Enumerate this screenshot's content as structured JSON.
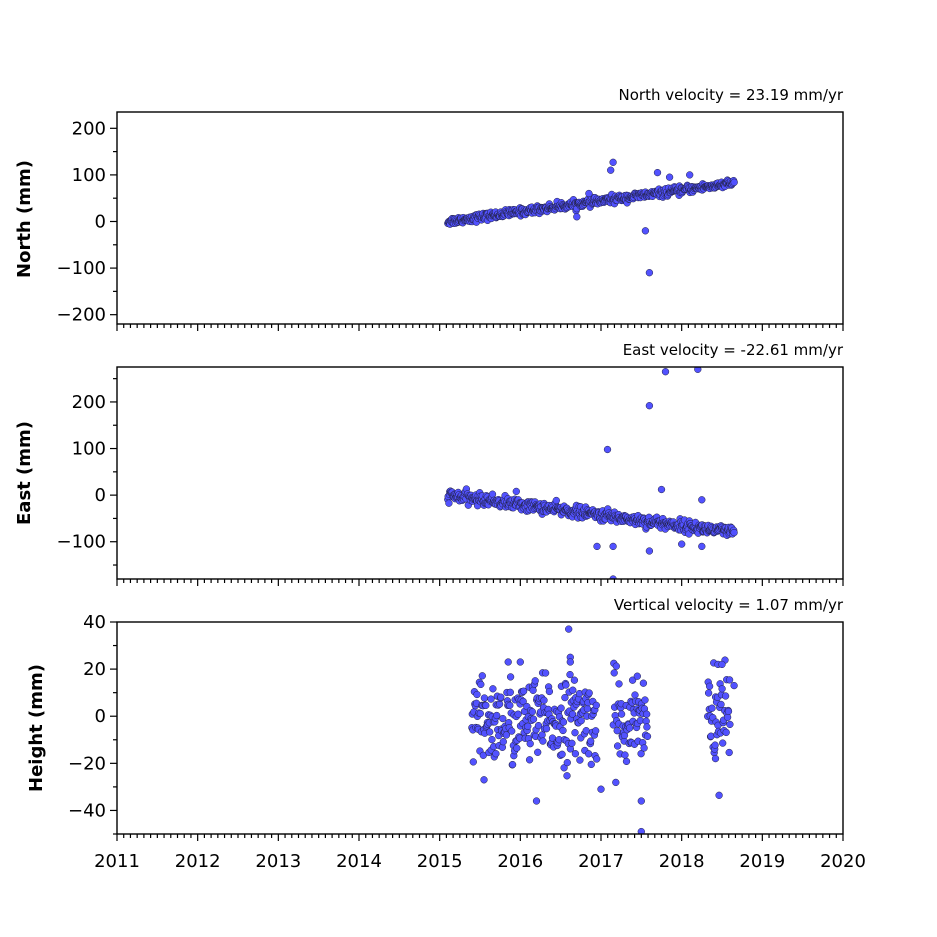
{
  "chart_data": [
    {
      "type": "scatter",
      "title": "North velocity = 23.19 mm/yr",
      "ylabel": "North (mm)",
      "xlim": [
        2011,
        2020
      ],
      "ylim": [
        -220,
        235
      ],
      "yticks": [
        200,
        100,
        0,
        -100,
        -200
      ],
      "yticklabels": [
        "200",
        "100",
        "0",
        "−100",
        "−200"
      ],
      "show_xticklabels": false,
      "trend": {
        "x_start": 2015.1,
        "x_end": 2018.65,
        "y_start": 0,
        "rate": 23.19,
        "scatter": 4
      },
      "gaps": [],
      "extra_points": [
        [
          2017.12,
          110
        ],
        [
          2017.15,
          127
        ],
        [
          2017.55,
          -20
        ],
        [
          2017.6,
          -110
        ],
        [
          2017.7,
          105
        ],
        [
          2017.85,
          95
        ],
        [
          2018.1,
          100
        ],
        [
          2016.85,
          60
        ],
        [
          2016.7,
          10
        ]
      ],
      "color": "#5252ff"
    },
    {
      "type": "scatter",
      "title": "East velocity = -22.61 mm/yr",
      "ylabel": "East (mm)",
      "xlim": [
        2011,
        2020
      ],
      "ylim": [
        -180,
        275
      ],
      "yticks": [
        200,
        100,
        0,
        -100
      ],
      "yticklabels": [
        "200",
        "100",
        "0",
        "−100"
      ],
      "show_xticklabels": false,
      "trend": {
        "x_start": 2015.1,
        "x_end": 2018.65,
        "y_start": 0,
        "rate": -22.61,
        "scatter": 6
      },
      "gaps": [],
      "extra_points": [
        [
          2017.08,
          98
        ],
        [
          2017.6,
          192
        ],
        [
          2017.8,
          265
        ],
        [
          2018.2,
          270
        ],
        [
          2017.15,
          -180
        ],
        [
          2016.95,
          -110
        ],
        [
          2017.15,
          -110
        ],
        [
          2017.6,
          -120
        ],
        [
          2018.0,
          -105
        ],
        [
          2018.25,
          -110
        ],
        [
          2018.25,
          -10
        ],
        [
          2017.75,
          12
        ],
        [
          2015.95,
          8
        ]
      ],
      "color": "#5252ff"
    },
    {
      "type": "scatter",
      "title": "Vertical velocity = 1.07 mm/yr",
      "ylabel": "Height (mm)",
      "xlim": [
        2011,
        2020
      ],
      "ylim": [
        -50,
        40
      ],
      "yticks": [
        40,
        20,
        0,
        -20,
        -40
      ],
      "yticklabels": [
        "40",
        "20",
        "0",
        "−20",
        "−40"
      ],
      "show_xticklabels": true,
      "xticks": [
        2011,
        2012,
        2013,
        2014,
        2015,
        2016,
        2017,
        2018,
        2019,
        2020
      ],
      "xticklabels": [
        "2011",
        "2012",
        "2013",
        "2014",
        "2015",
        "2016",
        "2017",
        "2018",
        "2019",
        "2020"
      ],
      "trend": {
        "x_start": 2015.4,
        "x_end": 2018.6,
        "y_start": -3,
        "rate": 1.07,
        "scatter": 9
      },
      "gaps": [
        [
          2016.95,
          2017.15
        ],
        [
          2017.58,
          2018.32
        ]
      ],
      "extra_points": [
        [
          2016.6,
          37
        ],
        [
          2016.62,
          25
        ],
        [
          2016.62,
          23
        ],
        [
          2015.85,
          23
        ],
        [
          2016.0,
          23
        ],
        [
          2015.55,
          -27
        ],
        [
          2016.2,
          -36
        ],
        [
          2017.0,
          -31
        ],
        [
          2017.5,
          -36
        ],
        [
          2017.5,
          -49
        ],
        [
          2018.45,
          22
        ],
        [
          2018.5,
          22
        ],
        [
          2018.42,
          -18
        ],
        [
          2017.45,
          17
        ],
        [
          2018.65,
          13
        ]
      ],
      "color": "#5252ff"
    }
  ]
}
